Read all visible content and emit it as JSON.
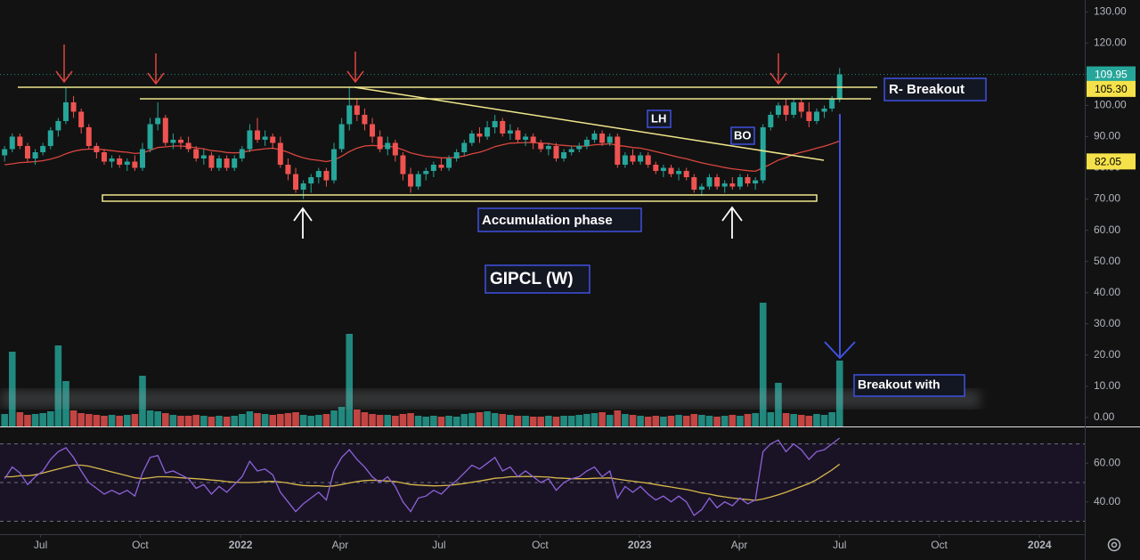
{
  "chart_data": {
    "type": "candlestick",
    "title": "GIPCL (W)",
    "x": [
      0,
      1,
      2,
      3,
      4,
      5,
      6,
      7,
      8,
      9,
      10,
      11,
      12,
      13,
      14,
      15,
      16,
      17,
      18,
      19,
      20,
      21,
      22,
      23,
      24,
      25,
      26,
      27,
      28,
      29,
      30,
      31,
      32,
      33,
      34,
      35,
      36,
      37,
      38,
      39,
      40,
      41,
      42,
      43,
      44,
      45,
      46,
      47,
      48,
      49,
      50,
      51,
      52,
      53,
      54,
      55,
      56,
      57,
      58,
      59,
      60,
      61,
      62,
      63,
      64,
      65,
      66,
      67,
      68,
      69,
      70,
      71,
      72,
      73,
      74,
      75,
      76,
      77,
      78,
      79,
      80,
      81,
      82,
      83,
      84,
      85,
      86,
      87,
      88,
      89,
      90,
      91,
      92,
      93,
      94,
      95,
      96,
      97,
      98,
      99,
      100,
      101,
      102,
      103,
      104,
      105,
      106,
      107,
      108,
      109
    ],
    "xlim": [
      -0.6,
      141
    ],
    "xticks": [
      {
        "value": 4.7,
        "label": "Jul"
      },
      {
        "value": 17.7,
        "label": "Oct"
      },
      {
        "value": 30.8,
        "label": "2022"
      },
      {
        "value": 43.8,
        "label": "Apr"
      },
      {
        "value": 56.7,
        "label": "Jul"
      },
      {
        "value": 69.9,
        "label": "Oct"
      },
      {
        "value": 82.9,
        "label": "2023"
      },
      {
        "value": 95.9,
        "label": "Apr"
      },
      {
        "value": 109,
        "label": "Jul"
      },
      {
        "value": 122,
        "label": "Oct"
      },
      {
        "value": 135.1,
        "label": "2024"
      }
    ],
    "ylim": [
      -2.9,
      133.8
    ],
    "yticks": [
      {
        "value": 0,
        "label": "0.00"
      },
      {
        "value": 10,
        "label": "10.00"
      },
      {
        "value": 20,
        "label": "20.00"
      },
      {
        "value": 30,
        "label": "30.00"
      },
      {
        "value": 40,
        "label": "40.00"
      },
      {
        "value": 50,
        "label": "50.00"
      },
      {
        "value": 60,
        "label": "60.00"
      },
      {
        "value": 70,
        "label": "70.00"
      },
      {
        "value": 80,
        "label": "80.00"
      },
      {
        "value": 90,
        "label": "90.00"
      },
      {
        "value": 100,
        "label": "100.00"
      },
      {
        "value": 110,
        "label": "110.00"
      },
      {
        "value": 120,
        "label": "120.00"
      },
      {
        "value": 130,
        "label": "130.00"
      }
    ],
    "open": [
      84,
      86,
      90,
      87,
      83,
      85,
      87,
      92,
      95,
      101,
      98,
      93,
      87,
      85,
      82,
      83,
      81,
      82,
      80,
      86,
      94,
      96,
      88,
      89,
      88,
      86,
      83,
      84,
      80,
      83,
      80,
      83,
      86,
      92,
      89,
      90,
      88,
      81,
      78,
      73,
      75,
      77,
      79,
      76,
      86,
      94,
      100,
      97,
      94,
      90,
      86,
      88,
      84,
      78,
      74,
      78,
      79,
      81,
      80,
      83,
      85,
      88,
      91,
      90,
      93,
      95,
      91,
      92,
      89,
      90,
      88,
      86,
      87,
      83,
      85,
      86,
      87,
      89,
      91,
      88,
      90,
      81,
      84,
      82,
      84,
      81,
      79,
      80,
      78,
      79,
      77,
      73,
      74,
      77,
      74,
      75,
      74,
      77,
      75,
      76,
      93,
      97,
      100,
      97,
      101,
      98,
      95,
      98,
      99,
      102
    ],
    "high": [
      87,
      91,
      91,
      88,
      86,
      88,
      93,
      96,
      106,
      103,
      99,
      94,
      88,
      86,
      84,
      84,
      83,
      84,
      88,
      96,
      101,
      97,
      91,
      90,
      90,
      87,
      86,
      85,
      84,
      84,
      84,
      87,
      94,
      96,
      92,
      91,
      90,
      83,
      80,
      76,
      78,
      80,
      80,
      88,
      96,
      106,
      102,
      99,
      96,
      92,
      90,
      89,
      85,
      80,
      79,
      80,
      82,
      83,
      84,
      86,
      89,
      92,
      93,
      95,
      97,
      96,
      94,
      93,
      91,
      91,
      89,
      88,
      88,
      86,
      87,
      88,
      90,
      92,
      92,
      91,
      91,
      85,
      86,
      85,
      85,
      82,
      81,
      81,
      80,
      80,
      78,
      75,
      78,
      78,
      76,
      77,
      78,
      78,
      77,
      94,
      98,
      101,
      102,
      102,
      102,
      101,
      99,
      100,
      103,
      112
    ],
    "low": [
      82,
      85,
      86,
      82,
      81,
      84,
      86,
      90,
      94,
      96,
      91,
      86,
      83,
      81,
      80,
      80,
      79,
      79,
      79,
      85,
      92,
      87,
      86,
      86,
      85,
      82,
      81,
      79,
      79,
      79,
      79,
      82,
      85,
      88,
      87,
      86,
      80,
      76,
      72,
      70,
      72,
      75,
      74,
      75,
      85,
      92,
      95,
      92,
      88,
      85,
      84,
      82,
      76,
      72,
      73,
      76,
      77,
      79,
      79,
      82,
      84,
      87,
      88,
      89,
      91,
      90,
      89,
      88,
      87,
      86,
      85,
      84,
      82,
      82,
      84,
      85,
      86,
      88,
      87,
      87,
      80,
      80,
      81,
      81,
      80,
      78,
      77,
      77,
      76,
      76,
      72,
      71,
      73,
      73,
      72,
      73,
      73,
      74,
      73,
      75,
      92,
      96,
      95,
      96,
      96,
      93,
      94,
      96,
      98,
      101
    ],
    "close": [
      86,
      90,
      87,
      83,
      85,
      87,
      92,
      95,
      101,
      98,
      93,
      87,
      85,
      82,
      83,
      81,
      82,
      80,
      86,
      94,
      96,
      88,
      89,
      88,
      86,
      83,
      84,
      80,
      83,
      80,
      83,
      86,
      92,
      89,
      90,
      88,
      81,
      78,
      73,
      75,
      77,
      79,
      76,
      86,
      94,
      100,
      97,
      94,
      90,
      86,
      88,
      84,
      78,
      74,
      78,
      79,
      81,
      80,
      83,
      85,
      88,
      91,
      90,
      93,
      95,
      91,
      92,
      89,
      90,
      88,
      86,
      87,
      83,
      85,
      86,
      87,
      89,
      91,
      88,
      90,
      81,
      84,
      82,
      84,
      81,
      79,
      80,
      78,
      79,
      77,
      73,
      74,
      77,
      74,
      75,
      74,
      77,
      75,
      76,
      93,
      97,
      100,
      97,
      101,
      98,
      95,
      98,
      99,
      102,
      109.95
    ],
    "up_color": "#26a69a",
    "down_color": "#ef5350",
    "volume": [
      14,
      84,
      16,
      13,
      14,
      15,
      17,
      91,
      51,
      18,
      15,
      14,
      13,
      12,
      13,
      12,
      13,
      14,
      57,
      18,
      17,
      15,
      13,
      12,
      12,
      13,
      12,
      11,
      12,
      11,
      12,
      14,
      17,
      15,
      14,
      13,
      14,
      15,
      16,
      13,
      12,
      13,
      14,
      18,
      22,
      104,
      19,
      16,
      14,
      13,
      13,
      12,
      14,
      15,
      12,
      11,
      12,
      11,
      12,
      11,
      14,
      15,
      16,
      17,
      15,
      14,
      13,
      12,
      12,
      11,
      11,
      12,
      11,
      12,
      12,
      13,
      14,
      15,
      16,
      13,
      18,
      14,
      13,
      12,
      11,
      12,
      11,
      12,
      13,
      12,
      14,
      13,
      12,
      11,
      12,
      13,
      12,
      14,
      15,
      139,
      16,
      49,
      15,
      14,
      13,
      12,
      14,
      13,
      16,
      74
    ],
    "ema": {
      "color": "#d9463f",
      "values": [
        81,
        81.3,
        81.7,
        81.8,
        82,
        82.3,
        82.8,
        83.5,
        84.5,
        85.3,
        85.8,
        86,
        86,
        85.8,
        85.5,
        85.2,
        85,
        84.6,
        84.8,
        85.6,
        86.5,
        86.7,
        87,
        87,
        86.8,
        86.4,
        86.1,
        85.5,
        85.3,
        84.9,
        84.8,
        84.9,
        85.5,
        85.8,
        86.1,
        86.3,
        85.8,
        85,
        84,
        83.2,
        82.7,
        82.4,
        82,
        82.5,
        83.7,
        85.2,
        86.3,
        87,
        87.2,
        87,
        87,
        86.6,
        85.8,
        84.8,
        84.2,
        83.7,
        83.5,
        83.2,
        83.2,
        83.4,
        83.8,
        84.5,
        85,
        85.8,
        86.8,
        87.4,
        87.9,
        88,
        88.1,
        88.1,
        87.9,
        87.8,
        87.4,
        87.2,
        87,
        86.9,
        87,
        87.4,
        87.5,
        87.7,
        87.2,
        86.9,
        86.5,
        86.3,
        85.8,
        85.2,
        84.6,
        84,
        83.4,
        82.9,
        82.2,
        81.6,
        81.1,
        80.6,
        80.1,
        79.7,
        79.4,
        79.1,
        78.9,
        80,
        81.2,
        82.5,
        83.3,
        84.3,
        85,
        85.6,
        86.3,
        86.9,
        87.7,
        88.6
      ]
    },
    "price_labels": [
      {
        "value": 109.95,
        "label": "109.95",
        "color": "#26a69a"
      },
      {
        "value": 105.3,
        "label": "105.30",
        "color": "#f5e14a"
      },
      {
        "value": 82.05,
        "label": "82.05",
        "color": "#f5e14a"
      }
    ],
    "rsi": {
      "color": "#8c63d8",
      "values": [
        52,
        58,
        55,
        49,
        53,
        56,
        62,
        66,
        68,
        63,
        56,
        50,
        47,
        44,
        46,
        44,
        46,
        43,
        55,
        63,
        64,
        55,
        56,
        54,
        52,
        47,
        49,
        44,
        48,
        45,
        49,
        53,
        61,
        56,
        57,
        54,
        45,
        40,
        35,
        39,
        42,
        45,
        41,
        56,
        63,
        67,
        62,
        58,
        53,
        50,
        53,
        48,
        40,
        35,
        42,
        43,
        46,
        44,
        48,
        51,
        55,
        59,
        57,
        60,
        63,
        56,
        58,
        53,
        56,
        53,
        50,
        52,
        46,
        50,
        52,
        53,
        56,
        58,
        53,
        56,
        42,
        48,
        45,
        48,
        44,
        41,
        43,
        40,
        43,
        40,
        33,
        36,
        42,
        37,
        40,
        38,
        42,
        39,
        41,
        66,
        70,
        72,
        66,
        70,
        67,
        62,
        66,
        67,
        70,
        73
      ]
    },
    "rsi_ma": {
      "color": "#d8b84a",
      "values": [
        53,
        53,
        53.5,
        53.5,
        54,
        55,
        56,
        57,
        58,
        59,
        59,
        58.5,
        57.5,
        56.5,
        55.5,
        54.5,
        53.5,
        52.5,
        52,
        52.5,
        53,
        53,
        52.8,
        52.5,
        52.2,
        52,
        51.7,
        51.3,
        51,
        50.5,
        50.2,
        50,
        50,
        50.2,
        50.5,
        50.6,
        50.3,
        49.8,
        49,
        48.5,
        48.3,
        48.3,
        48,
        48.3,
        49,
        49.8,
        50.5,
        51,
        51.2,
        51,
        50.8,
        50.5,
        49.8,
        49,
        48.7,
        48.5,
        48.3,
        48.4,
        48.6,
        49,
        49.5,
        50.2,
        50.8,
        51.5,
        52.2,
        52.5,
        53,
        53,
        53.2,
        53.1,
        53,
        52.8,
        52.4,
        52.2,
        52,
        52,
        52,
        52.2,
        52.3,
        52.4,
        51.8,
        51.2,
        50.7,
        50.2,
        49.7,
        49,
        48.3,
        47.7,
        47,
        46.4,
        45.6,
        44.6,
        44,
        43.2,
        42.6,
        42,
        41.6,
        41.2,
        40.8,
        41.5,
        42.5,
        43.7,
        45,
        46.5,
        48,
        49.5,
        51.5,
        54,
        56.5,
        59.5
      ]
    },
    "rsi_ylim": [
      23.3,
      78.1
    ],
    "rsi_yticks": [
      {
        "value": 40,
        "label": "40.00"
      },
      {
        "value": 60,
        "label": "60.00"
      }
    ],
    "rsi_levels": [
      30,
      50,
      70
    ],
    "annotations": [
      "R- Breakout",
      "LH",
      "BO",
      "Accumulation phase",
      "Breakout with"
    ]
  }
}
